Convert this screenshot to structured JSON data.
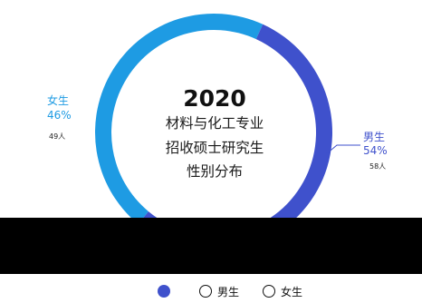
{
  "chart_data": {
    "type": "pie",
    "title": "2020",
    "subtitle_lines": [
      "材料与化工专业",
      "招收硕士研究生",
      "性别分布"
    ],
    "slices": [
      {
        "label": "男生",
        "percent": "54%",
        "count": "58人",
        "value": 58,
        "color": "#3f51cc"
      },
      {
        "label": "女生",
        "percent": "46%",
        "count": "49人",
        "value": 49,
        "color": "#1e9be3"
      }
    ],
    "legend": {
      "placement": "bottom",
      "items": [
        {
          "label": "",
          "style": "filled",
          "color": "#3f51cc"
        },
        {
          "label": "男生",
          "style": "outline",
          "color": "#111111"
        },
        {
          "label": "女生",
          "style": "outline",
          "color": "#111111"
        }
      ]
    }
  }
}
